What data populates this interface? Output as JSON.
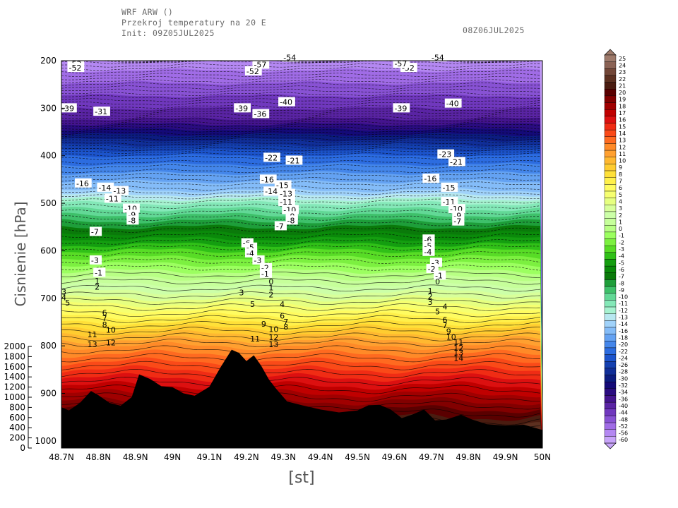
{
  "header": {
    "line1": "WRF ARW ()",
    "line2": "Przekroj temperatury na 20 E",
    "line3": "Init: 09Z05JUL2025",
    "valid": "08Z06JUL2025"
  },
  "chart_data": {
    "type": "contour-cross-section",
    "x_label": "[st]",
    "y_label": "Cisnienie  [hPa]",
    "x_ticks": [
      "48.7N",
      "48.8N",
      "48.9N",
      "49N",
      "49.1N",
      "49.2N",
      "49.3N",
      "49.4N",
      "49.5N",
      "49.6N",
      "49.7N",
      "49.8N",
      "49.9N",
      "50N"
    ],
    "x_range": [
      48.7,
      50.0
    ],
    "pressure_ticks": [
      200,
      300,
      400,
      500,
      600,
      700,
      800,
      900,
      1000
    ],
    "pressure_range": [
      200,
      1015
    ],
    "height_ticks": [
      0,
      200,
      400,
      600,
      800,
      1000,
      1200,
      1400,
      1600,
      1800,
      2000
    ],
    "temperature_profile": [
      {
        "p": 200,
        "t": -55
      },
      {
        "p": 300,
        "t": -40
      },
      {
        "p": 400,
        "t": -22
      },
      {
        "p": 500,
        "t": -11
      },
      {
        "p": 600,
        "t": -3
      },
      {
        "p": 700,
        "t": 4
      },
      {
        "p": 800,
        "t": 12
      },
      {
        "p": 900,
        "t": 18
      },
      {
        "p": 1000,
        "t": 24
      }
    ],
    "terrain_pressure": [
      {
        "lat": 48.7,
        "p": 929
      },
      {
        "lat": 48.72,
        "p": 936
      },
      {
        "lat": 48.75,
        "p": 920
      },
      {
        "lat": 48.78,
        "p": 895
      },
      {
        "lat": 48.8,
        "p": 904
      },
      {
        "lat": 48.83,
        "p": 920
      },
      {
        "lat": 48.86,
        "p": 926
      },
      {
        "lat": 48.89,
        "p": 908
      },
      {
        "lat": 48.91,
        "p": 860
      },
      {
        "lat": 48.94,
        "p": 870
      },
      {
        "lat": 48.97,
        "p": 885
      },
      {
        "lat": 49.0,
        "p": 887
      },
      {
        "lat": 49.03,
        "p": 900
      },
      {
        "lat": 49.06,
        "p": 905
      },
      {
        "lat": 49.1,
        "p": 886
      },
      {
        "lat": 49.13,
        "p": 845
      },
      {
        "lat": 49.16,
        "p": 808
      },
      {
        "lat": 49.18,
        "p": 815
      },
      {
        "lat": 49.2,
        "p": 832
      },
      {
        "lat": 49.22,
        "p": 820
      },
      {
        "lat": 49.24,
        "p": 842
      },
      {
        "lat": 49.26,
        "p": 870
      },
      {
        "lat": 49.28,
        "p": 890
      },
      {
        "lat": 49.31,
        "p": 917
      },
      {
        "lat": 49.35,
        "p": 925
      },
      {
        "lat": 49.4,
        "p": 934
      },
      {
        "lat": 49.45,
        "p": 940
      },
      {
        "lat": 49.5,
        "p": 936
      },
      {
        "lat": 49.53,
        "p": 925
      },
      {
        "lat": 49.56,
        "p": 924
      },
      {
        "lat": 49.59,
        "p": 934
      },
      {
        "lat": 49.62,
        "p": 952
      },
      {
        "lat": 49.65,
        "p": 944
      },
      {
        "lat": 49.68,
        "p": 934
      },
      {
        "lat": 49.71,
        "p": 957
      },
      {
        "lat": 49.74,
        "p": 955
      },
      {
        "lat": 49.78,
        "p": 945
      },
      {
        "lat": 49.81,
        "p": 955
      },
      {
        "lat": 49.85,
        "p": 965
      },
      {
        "lat": 49.9,
        "p": 968
      },
      {
        "lat": 49.95,
        "p": 966
      },
      {
        "lat": 50.0,
        "p": 977
      }
    ],
    "contour_labels_sample": [
      {
        "lat": 48.72,
        "p": 207,
        "t": "-53"
      },
      {
        "lat": 48.72,
        "p": 215,
        "t": "-52"
      },
      {
        "lat": 48.7,
        "p": 300,
        "t": "-39"
      },
      {
        "lat": 48.79,
        "p": 307,
        "t": "-31"
      },
      {
        "lat": 48.74,
        "p": 458,
        "t": "-16"
      },
      {
        "lat": 48.8,
        "p": 467,
        "t": "-14"
      },
      {
        "lat": 48.84,
        "p": 474,
        "t": "-13"
      },
      {
        "lat": 48.82,
        "p": 490,
        "t": "-11"
      },
      {
        "lat": 48.87,
        "p": 511,
        "t": "-10"
      },
      {
        "lat": 48.88,
        "p": 524,
        "t": "-9"
      },
      {
        "lat": 48.88,
        "p": 536,
        "t": "-8"
      },
      {
        "lat": 48.78,
        "p": 560,
        "t": "-7"
      },
      {
        "lat": 48.78,
        "p": 620,
        "t": "-3"
      },
      {
        "lat": 48.79,
        "p": 646,
        "t": "-1"
      },
      {
        "lat": 48.79,
        "p": 663,
        "t": "1"
      },
      {
        "lat": 48.79,
        "p": 676,
        "t": "2"
      },
      {
        "lat": 48.7,
        "p": 686,
        "t": "3"
      },
      {
        "lat": 48.7,
        "p": 698,
        "t": "4"
      },
      {
        "lat": 48.71,
        "p": 709,
        "t": "5"
      },
      {
        "lat": 48.81,
        "p": 730,
        "t": "6"
      },
      {
        "lat": 48.81,
        "p": 742,
        "t": "7"
      },
      {
        "lat": 48.81,
        "p": 755,
        "t": "8"
      },
      {
        "lat": 48.82,
        "p": 766,
        "t": "10"
      },
      {
        "lat": 48.77,
        "p": 776,
        "t": "11"
      },
      {
        "lat": 48.82,
        "p": 793,
        "t": "12"
      },
      {
        "lat": 48.77,
        "p": 797,
        "t": "13"
      },
      {
        "lat": 49.2,
        "p": 222,
        "t": "-52"
      },
      {
        "lat": 49.22,
        "p": 208,
        "t": "-57"
      },
      {
        "lat": 49.17,
        "p": 300,
        "t": "-39"
      },
      {
        "lat": 49.22,
        "p": 312,
        "t": "-36"
      },
      {
        "lat": 49.29,
        "p": 287,
        "t": "-40"
      },
      {
        "lat": 49.3,
        "p": 193,
        "t": "-54"
      },
      {
        "lat": 49.31,
        "p": 410,
        "t": "-21"
      },
      {
        "lat": 49.25,
        "p": 404,
        "t": "-22"
      },
      {
        "lat": 49.24,
        "p": 450,
        "t": "-16"
      },
      {
        "lat": 49.28,
        "p": 462,
        "t": "-15"
      },
      {
        "lat": 49.25,
        "p": 475,
        "t": "-14"
      },
      {
        "lat": 49.29,
        "p": 480,
        "t": "-13"
      },
      {
        "lat": 49.29,
        "p": 497,
        "t": "-11"
      },
      {
        "lat": 49.3,
        "p": 514,
        "t": "-10"
      },
      {
        "lat": 49.31,
        "p": 527,
        "t": "-9"
      },
      {
        "lat": 49.31,
        "p": 536,
        "t": "-8"
      },
      {
        "lat": 49.28,
        "p": 548,
        "t": "-7"
      },
      {
        "lat": 49.19,
        "p": 584,
        "t": "-6"
      },
      {
        "lat": 49.2,
        "p": 593,
        "t": "-5"
      },
      {
        "lat": 49.2,
        "p": 605,
        "t": "-4"
      },
      {
        "lat": 49.22,
        "p": 620,
        "t": "-3"
      },
      {
        "lat": 49.24,
        "p": 636,
        "t": "-2"
      },
      {
        "lat": 49.24,
        "p": 648,
        "t": "-1"
      },
      {
        "lat": 49.26,
        "p": 665,
        "t": "0"
      },
      {
        "lat": 49.26,
        "p": 677,
        "t": "1"
      },
      {
        "lat": 49.26,
        "p": 692,
        "t": "2"
      },
      {
        "lat": 49.18,
        "p": 688,
        "t": "3"
      },
      {
        "lat": 49.29,
        "p": 712,
        "t": "4"
      },
      {
        "lat": 49.21,
        "p": 712,
        "t": "5"
      },
      {
        "lat": 49.29,
        "p": 737,
        "t": "6"
      },
      {
        "lat": 49.3,
        "p": 749,
        "t": "7"
      },
      {
        "lat": 49.3,
        "p": 760,
        "t": "8"
      },
      {
        "lat": 49.24,
        "p": 754,
        "t": "9"
      },
      {
        "lat": 49.26,
        "p": 765,
        "t": "10"
      },
      {
        "lat": 49.21,
        "p": 785,
        "t": "11"
      },
      {
        "lat": 49.26,
        "p": 782,
        "t": "12"
      },
      {
        "lat": 49.26,
        "p": 797,
        "t": "13"
      },
      {
        "lat": 49.62,
        "p": 215,
        "t": "-52"
      },
      {
        "lat": 49.6,
        "p": 206,
        "t": "-57"
      },
      {
        "lat": 49.6,
        "p": 300,
        "t": "-39"
      },
      {
        "lat": 49.74,
        "p": 290,
        "t": "-40"
      },
      {
        "lat": 49.7,
        "p": 193,
        "t": "-54"
      },
      {
        "lat": 49.75,
        "p": 413,
        "t": "-21"
      },
      {
        "lat": 49.72,
        "p": 397,
        "t": "-23"
      },
      {
        "lat": 49.68,
        "p": 448,
        "t": "-16"
      },
      {
        "lat": 49.73,
        "p": 467,
        "t": "-15"
      },
      {
        "lat": 49.73,
        "p": 497,
        "t": "-11"
      },
      {
        "lat": 49.75,
        "p": 512,
        "t": "-10"
      },
      {
        "lat": 49.76,
        "p": 526,
        "t": "-9"
      },
      {
        "lat": 49.76,
        "p": 538,
        "t": "-7"
      },
      {
        "lat": 49.68,
        "p": 576,
        "t": "-6"
      },
      {
        "lat": 49.68,
        "p": 590,
        "t": "-5"
      },
      {
        "lat": 49.68,
        "p": 602,
        "t": "-4"
      },
      {
        "lat": 49.7,
        "p": 625,
        "t": "-3"
      },
      {
        "lat": 49.69,
        "p": 638,
        "t": "-2"
      },
      {
        "lat": 49.71,
        "p": 652,
        "t": "-1"
      },
      {
        "lat": 49.71,
        "p": 665,
        "t": "0"
      },
      {
        "lat": 49.69,
        "p": 684,
        "t": "1"
      },
      {
        "lat": 49.69,
        "p": 696,
        "t": "2"
      },
      {
        "lat": 49.69,
        "p": 708,
        "t": "3"
      },
      {
        "lat": 49.73,
        "p": 717,
        "t": "4"
      },
      {
        "lat": 49.71,
        "p": 728,
        "t": "5"
      },
      {
        "lat": 49.73,
        "p": 745,
        "t": "6"
      },
      {
        "lat": 49.73,
        "p": 757,
        "t": "7"
      },
      {
        "lat": 49.74,
        "p": 769,
        "t": "9"
      },
      {
        "lat": 49.74,
        "p": 781,
        "t": "10"
      },
      {
        "lat": 49.76,
        "p": 792,
        "t": "11"
      },
      {
        "lat": 49.76,
        "p": 804,
        "t": "12"
      },
      {
        "lat": 49.76,
        "p": 814,
        "t": "13"
      },
      {
        "lat": 49.76,
        "p": 826,
        "t": "14"
      }
    ]
  },
  "legend": {
    "levels": [
      "25",
      "24",
      "23",
      "22",
      "21",
      "20",
      "19",
      "18",
      "17",
      "16",
      "15",
      "14",
      "13",
      "12",
      "11",
      "10",
      "9",
      "8",
      "7",
      "6",
      "5",
      "4",
      "3",
      "2",
      "1",
      "0",
      "-1",
      "-2",
      "-3",
      "-4",
      "-5",
      "-6",
      "-7",
      "-8",
      "-9",
      "-10",
      "-11",
      "-12",
      "-13",
      "-14",
      "-16",
      "-18",
      "-20",
      "-22",
      "-24",
      "-26",
      "-28",
      "-30",
      "-32",
      "-34",
      "-36",
      "-40",
      "-44",
      "-48",
      "-52",
      "-56",
      "-60"
    ],
    "colors": [
      "#9e7a6b",
      "#8a6254",
      "#724637",
      "#5c3020",
      "#4a1c10",
      "#5a0000",
      "#820000",
      "#a00000",
      "#c00000",
      "#dc1010",
      "#f02c14",
      "#fa4a18",
      "#ff6a20",
      "#ff8a28",
      "#ffa030",
      "#ffb830",
      "#ffcc30",
      "#ffe038",
      "#fff04a",
      "#fffc60",
      "#f6ff70",
      "#e6ff80",
      "#d8ff9a",
      "#ccffa8",
      "#c6ff9a",
      "#b8ff84",
      "#9cff60",
      "#7cf040",
      "#58dc26",
      "#30c018",
      "#149e10",
      "#0a8a0a",
      "#0a7a0a",
      "#1e9e3a",
      "#3ec06a",
      "#62d896",
      "#84e8b8",
      "#a6f2d0",
      "#b8e8f0",
      "#a0d2fa",
      "#84bcf8",
      "#64a2f2",
      "#4486ea",
      "#2c6ce0",
      "#1c54cc",
      "#1440b0",
      "#102e98",
      "#0c1c80",
      "#140a78",
      "#2a0c80",
      "#44148e",
      "#5a24a4",
      "#7038be",
      "#8852d4",
      "#a06ce6",
      "#b488f2",
      "#c8a4fa"
    ]
  }
}
